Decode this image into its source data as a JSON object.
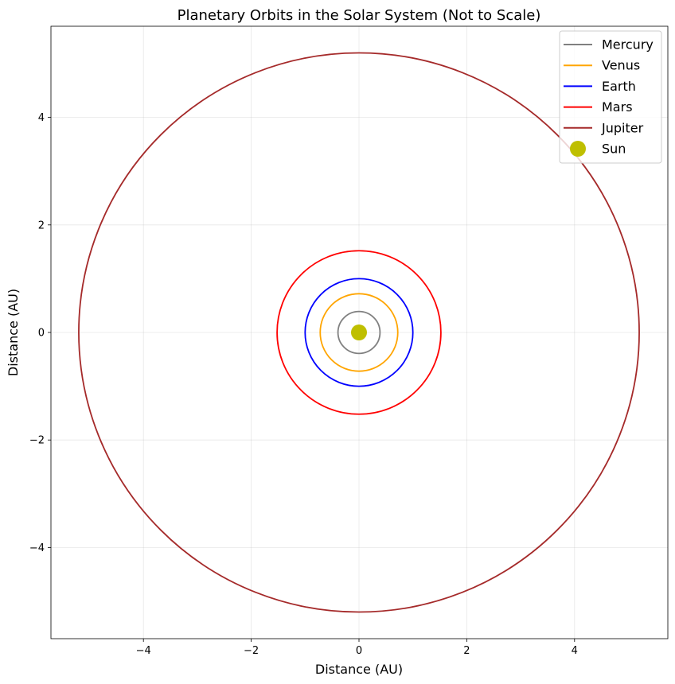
{
  "chart_data": {
    "type": "line",
    "title": "Planetary Orbits in the Solar System (Not to Scale)",
    "xlabel": "Distance (AU)",
    "ylabel": "Distance (AU)",
    "xlim": [
      -5.72,
      5.72
    ],
    "ylim": [
      -5.72,
      5.72
    ],
    "xticks": [
      -4,
      -2,
      0,
      2,
      4
    ],
    "yticks": [
      -4,
      -2,
      0,
      2,
      4
    ],
    "xtick_labels": [
      "−4",
      "−2",
      "0",
      "2",
      "4"
    ],
    "ytick_labels": [
      "−4",
      "−2",
      "0",
      "2",
      "4"
    ],
    "grid": true,
    "legend_position": "top-right",
    "series": [
      {
        "name": "Mercury",
        "kind": "orbit",
        "radius": 0.39,
        "color": "#808080"
      },
      {
        "name": "Venus",
        "kind": "orbit",
        "radius": 0.72,
        "color": "#FFA500"
      },
      {
        "name": "Earth",
        "kind": "orbit",
        "radius": 1.0,
        "color": "#0000FF"
      },
      {
        "name": "Mars",
        "kind": "orbit",
        "radius": 1.52,
        "color": "#FF0000"
      },
      {
        "name": "Jupiter",
        "kind": "orbit",
        "radius": 5.2,
        "color": "#A52A2A"
      },
      {
        "name": "Sun",
        "kind": "point",
        "x": 0,
        "y": 0,
        "color": "#BFBF00"
      }
    ]
  }
}
